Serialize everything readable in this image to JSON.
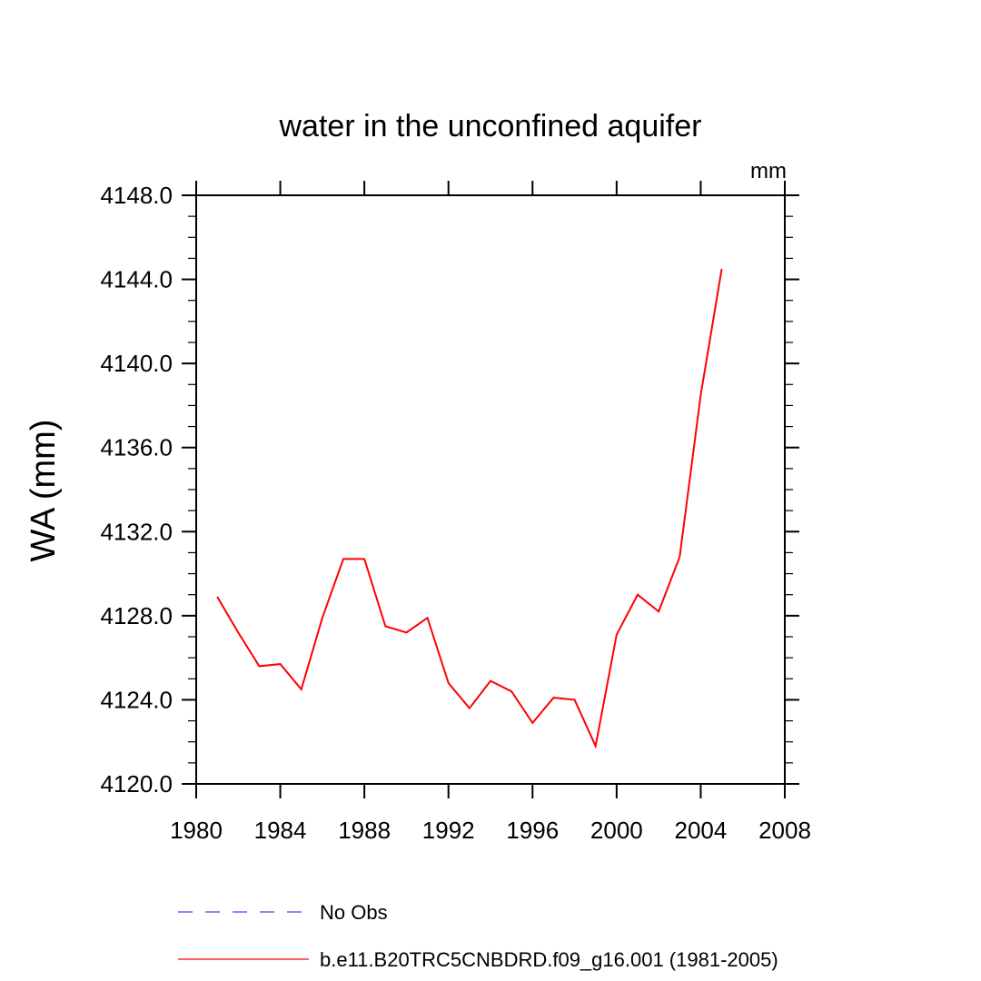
{
  "chart_data": {
    "type": "line",
    "title": "water in the unconfined aquifer",
    "units_label": "mm",
    "ylabel": "WA  (mm)",
    "xlabel": "",
    "xlim": [
      1980,
      2008
    ],
    "ylim": [
      4120,
      4148
    ],
    "x_ticks": [
      1980,
      1984,
      1988,
      1992,
      1996,
      2000,
      2004,
      2008
    ],
    "x_tick_labels": [
      "1980",
      "1984",
      "1988",
      "1992",
      "1996",
      "2000",
      "2004",
      "2008"
    ],
    "y_ticks": [
      4120,
      4124,
      4128,
      4132,
      4136,
      4140,
      4144,
      4148
    ],
    "y_tick_labels": [
      "4120.0",
      "4124.0",
      "4128.0",
      "4132.0",
      "4136.0",
      "4140.0",
      "4144.0",
      "4148.0"
    ],
    "grid": false,
    "legend_placement": "bottom-left",
    "series": [
      {
        "name": "No Obs",
        "color": "#4444ff",
        "style": "dashed",
        "x": [],
        "y": []
      },
      {
        "name": "b.e11.B20TRC5CNBDRD.f09_g16.001 (1981-2005)",
        "color": "#ff0000",
        "style": "solid",
        "x": [
          1981,
          1982,
          1983,
          1984,
          1985,
          1986,
          1987,
          1988,
          1989,
          1990,
          1991,
          1992,
          1993,
          1994,
          1995,
          1996,
          1997,
          1998,
          1999,
          2000,
          2001,
          2002,
          2003,
          2004,
          2005
        ],
        "y": [
          4128.9,
          4127.2,
          4125.6,
          4125.7,
          4124.5,
          4127.9,
          4130.7,
          4130.7,
          4127.5,
          4127.2,
          4127.9,
          4124.8,
          4123.6,
          4124.9,
          4124.4,
          4122.9,
          4124.1,
          4124.0,
          4121.8,
          4127.1,
          4129.0,
          4128.2,
          4130.8,
          4138.5,
          4144.5
        ]
      }
    ]
  }
}
